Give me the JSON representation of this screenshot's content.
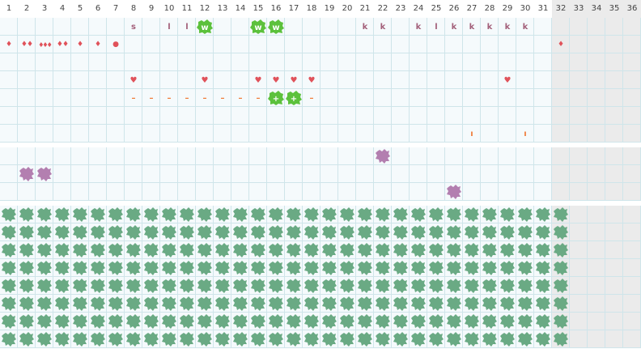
{
  "calendar": {
    "columns": [
      "1",
      "2",
      "3",
      "4",
      "5",
      "6",
      "7",
      "8",
      "9",
      "10",
      "11",
      "12",
      "13",
      "14",
      "15",
      "16",
      "17",
      "18",
      "19",
      "20",
      "21",
      "22",
      "23",
      "24",
      "25",
      "26",
      "27",
      "28",
      "29",
      "30",
      "31",
      "32",
      "33",
      "34",
      "35",
      "36"
    ],
    "active_days": 31,
    "colors": {
      "cell_bg": "#f5fafc",
      "inactive_bg": "#ebebeb",
      "grid_line": "#cfe5ea",
      "section_gap": "#ffffff",
      "letter": "#a3607a",
      "drop": "#e0525a",
      "heart": "#e0525a",
      "dash": "#f07c3a",
      "bar": "#f07c3a",
      "green_badge": "#5cc13c",
      "purple_blob": "#b37fb0",
      "moss": "#6aaa84"
    },
    "sections": [
      {
        "name": "tracker",
        "rows": [
          {
            "name": "letters",
            "marks": [
              {
                "day": 8,
                "text": "s"
              },
              {
                "day": 10,
                "text": "l"
              },
              {
                "day": 11,
                "text": "l"
              },
              {
                "day": 12,
                "text": "w",
                "style": "badge"
              },
              {
                "day": 15,
                "text": "w",
                "style": "badge"
              },
              {
                "day": 16,
                "text": "w",
                "style": "badge"
              },
              {
                "day": 21,
                "text": "k"
              },
              {
                "day": 22,
                "text": "k"
              },
              {
                "day": 24,
                "text": "k"
              },
              {
                "day": 25,
                "text": "l"
              },
              {
                "day": 26,
                "text": "k"
              },
              {
                "day": 27,
                "text": "k"
              },
              {
                "day": 28,
                "text": "k"
              },
              {
                "day": 29,
                "text": "k"
              },
              {
                "day": 30,
                "text": "k"
              }
            ]
          },
          {
            "name": "drops",
            "marks": [
              {
                "day": 1,
                "text": "♦"
              },
              {
                "day": 2,
                "text": "♦♦"
              },
              {
                "day": 3,
                "text": "♦♦♦"
              },
              {
                "day": 4,
                "text": "♦♦"
              },
              {
                "day": 5,
                "text": "♦"
              },
              {
                "day": 6,
                "text": "♦"
              },
              {
                "day": 7,
                "text": "●"
              },
              {
                "day": 32,
                "text": "♦"
              }
            ]
          },
          {
            "name": "empty",
            "marks": []
          },
          {
            "name": "hearts",
            "marks": [
              {
                "day": 8,
                "text": "♥"
              },
              {
                "day": 12,
                "text": "♥"
              },
              {
                "day": 15,
                "text": "♥"
              },
              {
                "day": 16,
                "text": "♥"
              },
              {
                "day": 17,
                "text": "♥"
              },
              {
                "day": 18,
                "text": "♥"
              },
              {
                "day": 29,
                "text": "♥"
              }
            ]
          },
          {
            "name": "dashes",
            "marks": [
              {
                "day": 8,
                "text": "–"
              },
              {
                "day": 9,
                "text": "–"
              },
              {
                "day": 10,
                "text": "–"
              },
              {
                "day": 11,
                "text": "–"
              },
              {
                "day": 12,
                "text": "–"
              },
              {
                "day": 13,
                "text": "–"
              },
              {
                "day": 14,
                "text": "–"
              },
              {
                "day": 15,
                "text": "–"
              },
              {
                "day": 16,
                "text": "+",
                "style": "badge"
              },
              {
                "day": 17,
                "text": "+",
                "style": "badge"
              },
              {
                "day": 18,
                "text": "–"
              }
            ]
          },
          {
            "name": "empty2",
            "marks": []
          },
          {
            "name": "bars",
            "marks": [
              {
                "day": 27,
                "text": "ı"
              },
              {
                "day": 30,
                "text": "ı"
              }
            ]
          }
        ]
      },
      {
        "name": "events",
        "rows": [
          {
            "name": "row1",
            "marks": [
              {
                "day": 22,
                "text": "",
                "style": "blob"
              }
            ]
          },
          {
            "name": "row2",
            "marks": [
              {
                "day": 2,
                "text": "",
                "style": "blob"
              },
              {
                "day": 3,
                "text": "",
                "style": "blob"
              }
            ]
          },
          {
            "name": "row3",
            "marks": [
              {
                "day": 26,
                "text": "",
                "style": "blob"
              }
            ]
          }
        ]
      },
      {
        "name": "moss-grid",
        "rows": 8,
        "filled_days": 32
      }
    ]
  }
}
